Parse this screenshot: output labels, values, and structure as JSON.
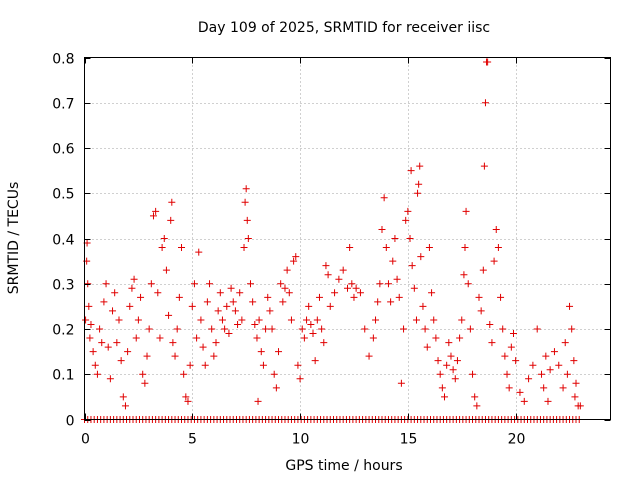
{
  "chart_data": {
    "type": "scatter",
    "title": "Day 109 of 2025, SRMTID for receiver iisc",
    "xlabel": "GPS time / hours",
    "ylabel": "SRMTID / TECUs",
    "xlim": [
      0,
      24.4
    ],
    "ylim": [
      0,
      0.8
    ],
    "x_ticks": [
      "0",
      "5",
      "10",
      "15",
      "20"
    ],
    "y_ticks": [
      "0",
      "0.1",
      "0.2",
      "0.3",
      "0.4",
      "0.5",
      "0.6",
      "0.7",
      "0.8"
    ],
    "grid": true,
    "marker": "plus",
    "color": "#e00000",
    "series": [
      {
        "name": "SRMTID",
        "points": [
          [
            0.05,
            0.22
          ],
          [
            0.1,
            0.35
          ],
          [
            0.12,
            0.39
          ],
          [
            0.15,
            0.3
          ],
          [
            0.2,
            0.25
          ],
          [
            0.25,
            0.18
          ],
          [
            0.3,
            0.21
          ],
          [
            0.4,
            0.15
          ],
          [
            0.5,
            0.12
          ],
          [
            0.6,
            0.1
          ],
          [
            0.7,
            0.2
          ],
          [
            0.8,
            0.17
          ],
          [
            0.9,
            0.26
          ],
          [
            1.0,
            0.3
          ],
          [
            1.1,
            0.16
          ],
          [
            1.2,
            0.09
          ],
          [
            1.3,
            0.24
          ],
          [
            1.4,
            0.28
          ],
          [
            1.5,
            0.17
          ],
          [
            1.6,
            0.22
          ],
          [
            1.7,
            0.13
          ],
          [
            1.8,
            0.05
          ],
          [
            1.9,
            0.03
          ],
          [
            2.0,
            0.15
          ],
          [
            2.1,
            0.25
          ],
          [
            2.2,
            0.29
          ],
          [
            2.3,
            0.31
          ],
          [
            2.4,
            0.18
          ],
          [
            2.5,
            0.22
          ],
          [
            2.6,
            0.27
          ],
          [
            2.7,
            0.1
          ],
          [
            2.8,
            0.08
          ],
          [
            2.9,
            0.14
          ],
          [
            3.0,
            0.2
          ],
          [
            3.1,
            0.3
          ],
          [
            3.2,
            0.45
          ],
          [
            3.3,
            0.46
          ],
          [
            3.4,
            0.28
          ],
          [
            3.5,
            0.18
          ],
          [
            3.6,
            0.38
          ],
          [
            3.7,
            0.4
          ],
          [
            3.8,
            0.33
          ],
          [
            3.9,
            0.23
          ],
          [
            4.0,
            0.44
          ],
          [
            4.05,
            0.48
          ],
          [
            4.1,
            0.17
          ],
          [
            4.2,
            0.14
          ],
          [
            4.3,
            0.2
          ],
          [
            4.4,
            0.27
          ],
          [
            4.5,
            0.38
          ],
          [
            4.6,
            0.1
          ],
          [
            4.7,
            0.05
          ],
          [
            4.8,
            0.04
          ],
          [
            4.9,
            0.12
          ],
          [
            5.0,
            0.25
          ],
          [
            5.1,
            0.3
          ],
          [
            5.2,
            0.18
          ],
          [
            5.3,
            0.37
          ],
          [
            5.4,
            0.22
          ],
          [
            5.5,
            0.16
          ],
          [
            5.6,
            0.12
          ],
          [
            5.7,
            0.26
          ],
          [
            5.8,
            0.3
          ],
          [
            5.9,
            0.2
          ],
          [
            6.0,
            0.14
          ],
          [
            6.1,
            0.17
          ],
          [
            6.2,
            0.24
          ],
          [
            6.3,
            0.28
          ],
          [
            6.4,
            0.22
          ],
          [
            6.5,
            0.2
          ],
          [
            6.6,
            0.25
          ],
          [
            6.7,
            0.19
          ],
          [
            6.8,
            0.29
          ],
          [
            6.9,
            0.26
          ],
          [
            7.0,
            0.24
          ],
          [
            7.1,
            0.21
          ],
          [
            7.2,
            0.28
          ],
          [
            7.3,
            0.22
          ],
          [
            7.4,
            0.38
          ],
          [
            7.45,
            0.48
          ],
          [
            7.5,
            0.51
          ],
          [
            7.55,
            0.44
          ],
          [
            7.6,
            0.4
          ],
          [
            7.7,
            0.3
          ],
          [
            7.8,
            0.26
          ],
          [
            7.9,
            0.21
          ],
          [
            8.0,
            0.18
          ],
          [
            8.05,
            0.04
          ],
          [
            8.1,
            0.22
          ],
          [
            8.2,
            0.15
          ],
          [
            8.3,
            0.12
          ],
          [
            8.4,
            0.2
          ],
          [
            8.5,
            0.27
          ],
          [
            8.6,
            0.24
          ],
          [
            8.7,
            0.2
          ],
          [
            8.8,
            0.1
          ],
          [
            8.9,
            0.07
          ],
          [
            9.0,
            0.15
          ],
          [
            9.1,
            0.3
          ],
          [
            9.2,
            0.26
          ],
          [
            9.3,
            0.29
          ],
          [
            9.4,
            0.33
          ],
          [
            9.5,
            0.28
          ],
          [
            9.6,
            0.22
          ],
          [
            9.7,
            0.35
          ],
          [
            9.8,
            0.36
          ],
          [
            9.9,
            0.12
          ],
          [
            10.0,
            0.09
          ],
          [
            10.1,
            0.2
          ],
          [
            10.2,
            0.18
          ],
          [
            10.3,
            0.22
          ],
          [
            10.4,
            0.25
          ],
          [
            10.5,
            0.21
          ],
          [
            10.6,
            0.19
          ],
          [
            10.7,
            0.13
          ],
          [
            10.8,
            0.22
          ],
          [
            10.9,
            0.27
          ],
          [
            11.0,
            0.2
          ],
          [
            11.1,
            0.17
          ],
          [
            11.2,
            0.34
          ],
          [
            11.3,
            0.32
          ],
          [
            11.4,
            0.25
          ],
          [
            11.6,
            0.28
          ],
          [
            11.8,
            0.31
          ],
          [
            12.0,
            0.33
          ],
          [
            12.2,
            0.29
          ],
          [
            12.3,
            0.38
          ],
          [
            12.4,
            0.3
          ],
          [
            12.5,
            0.27
          ],
          [
            12.6,
            0.29
          ],
          [
            12.8,
            0.28
          ],
          [
            13.0,
            0.2
          ],
          [
            13.2,
            0.14
          ],
          [
            13.4,
            0.18
          ],
          [
            13.5,
            0.22
          ],
          [
            13.6,
            0.26
          ],
          [
            13.7,
            0.3
          ],
          [
            13.8,
            0.42
          ],
          [
            13.9,
            0.49
          ],
          [
            14.0,
            0.38
          ],
          [
            14.1,
            0.3
          ],
          [
            14.2,
            0.26
          ],
          [
            14.3,
            0.35
          ],
          [
            14.4,
            0.4
          ],
          [
            14.5,
            0.31
          ],
          [
            14.6,
            0.27
          ],
          [
            14.7,
            0.08
          ],
          [
            14.8,
            0.2
          ],
          [
            14.9,
            0.44
          ],
          [
            15.0,
            0.46
          ],
          [
            15.1,
            0.4
          ],
          [
            15.15,
            0.55
          ],
          [
            15.2,
            0.34
          ],
          [
            15.3,
            0.29
          ],
          [
            15.4,
            0.22
          ],
          [
            15.45,
            0.5
          ],
          [
            15.5,
            0.52
          ],
          [
            15.55,
            0.56
          ],
          [
            15.6,
            0.36
          ],
          [
            15.7,
            0.25
          ],
          [
            15.8,
            0.2
          ],
          [
            15.9,
            0.16
          ],
          [
            16.0,
            0.38
          ],
          [
            16.1,
            0.28
          ],
          [
            16.2,
            0.22
          ],
          [
            16.3,
            0.18
          ],
          [
            16.4,
            0.13
          ],
          [
            16.5,
            0.1
          ],
          [
            16.6,
            0.07
          ],
          [
            16.7,
            0.05
          ],
          [
            16.8,
            0.12
          ],
          [
            16.9,
            0.17
          ],
          [
            17.0,
            0.14
          ],
          [
            17.1,
            0.11
          ],
          [
            17.2,
            0.09
          ],
          [
            17.3,
            0.13
          ],
          [
            17.4,
            0.18
          ],
          [
            17.5,
            0.22
          ],
          [
            17.6,
            0.32
          ],
          [
            17.65,
            0.38
          ],
          [
            17.7,
            0.46
          ],
          [
            17.8,
            0.3
          ],
          [
            17.9,
            0.2
          ],
          [
            18.0,
            0.1
          ],
          [
            18.1,
            0.05
          ],
          [
            18.2,
            0.03
          ],
          [
            18.3,
            0.27
          ],
          [
            18.4,
            0.24
          ],
          [
            18.5,
            0.33
          ],
          [
            18.55,
            0.56
          ],
          [
            18.6,
            0.7
          ],
          [
            18.65,
            0.79
          ],
          [
            18.7,
            0.79
          ],
          [
            18.8,
            0.21
          ],
          [
            18.9,
            0.17
          ],
          [
            19.0,
            0.35
          ],
          [
            19.1,
            0.42
          ],
          [
            19.2,
            0.38
          ],
          [
            19.3,
            0.27
          ],
          [
            19.4,
            0.2
          ],
          [
            19.5,
            0.14
          ],
          [
            19.6,
            0.1
          ],
          [
            19.7,
            0.07
          ],
          [
            19.8,
            0.16
          ],
          [
            19.9,
            0.19
          ],
          [
            20.0,
            0.13
          ],
          [
            20.2,
            0.06
          ],
          [
            20.4,
            0.04
          ],
          [
            20.6,
            0.09
          ],
          [
            20.8,
            0.12
          ],
          [
            21.0,
            0.2
          ],
          [
            21.2,
            0.1
          ],
          [
            21.3,
            0.07
          ],
          [
            21.4,
            0.14
          ],
          [
            21.5,
            0.04
          ],
          [
            21.6,
            0.11
          ],
          [
            21.8,
            0.15
          ],
          [
            22.0,
            0.12
          ],
          [
            22.2,
            0.07
          ],
          [
            22.3,
            0.17
          ],
          [
            22.4,
            0.1
          ],
          [
            22.5,
            0.25
          ],
          [
            22.6,
            0.2
          ],
          [
            22.7,
            0.13
          ],
          [
            22.75,
            0.05
          ],
          [
            22.8,
            0.08
          ],
          [
            22.9,
            0.03
          ],
          [
            23.0,
            0.03
          ]
        ],
        "zero_points": [
          0.0,
          0.15,
          0.3,
          0.45,
          0.6,
          0.75,
          0.9,
          1.05,
          1.2,
          1.35,
          1.5,
          1.65,
          1.8,
          1.95,
          2.1,
          2.25,
          2.4,
          2.55,
          2.7,
          2.85,
          3.0,
          3.15,
          3.3,
          3.45,
          3.6,
          3.75,
          3.9,
          4.05,
          4.2,
          4.35,
          4.5,
          4.65,
          4.8,
          4.95,
          5.1,
          5.25,
          5.4,
          5.55,
          5.7,
          5.85,
          6.0,
          6.15,
          6.3,
          6.45,
          6.6,
          6.75,
          6.9,
          7.05,
          7.2,
          7.35,
          7.5,
          7.65,
          7.8,
          7.95,
          8.1,
          8.25,
          8.4,
          8.55,
          8.7,
          8.85,
          9.0,
          9.15,
          9.3,
          9.45,
          9.6,
          9.75,
          9.9,
          10.05,
          10.2,
          10.35,
          10.5,
          10.65,
          10.8,
          10.95,
          11.1,
          11.25,
          11.4,
          11.55,
          11.7,
          11.85,
          12.0,
          12.15,
          12.3,
          12.45,
          12.6,
          12.75,
          12.9,
          13.05,
          13.2,
          13.35,
          13.5,
          13.65,
          13.8,
          13.95,
          14.1,
          14.25,
          14.4,
          14.55,
          14.7,
          14.85,
          15.0,
          15.15,
          15.3,
          15.45,
          15.6,
          15.75,
          15.9,
          16.05,
          16.2,
          16.35,
          16.5,
          16.65,
          16.8,
          16.95,
          17.1,
          17.25,
          17.4,
          17.55,
          17.7,
          17.85,
          18.0,
          18.15,
          18.3,
          18.45,
          18.6,
          18.75,
          18.9,
          19.05,
          19.2,
          19.35,
          19.5,
          19.65,
          19.8,
          19.95,
          20.1,
          20.25,
          20.4,
          20.55,
          20.7,
          20.85,
          21.0,
          21.15,
          21.3,
          21.45,
          21.6,
          21.75,
          21.9,
          22.05,
          22.2,
          22.35,
          22.5,
          22.65,
          22.8,
          22.95
        ]
      }
    ]
  }
}
